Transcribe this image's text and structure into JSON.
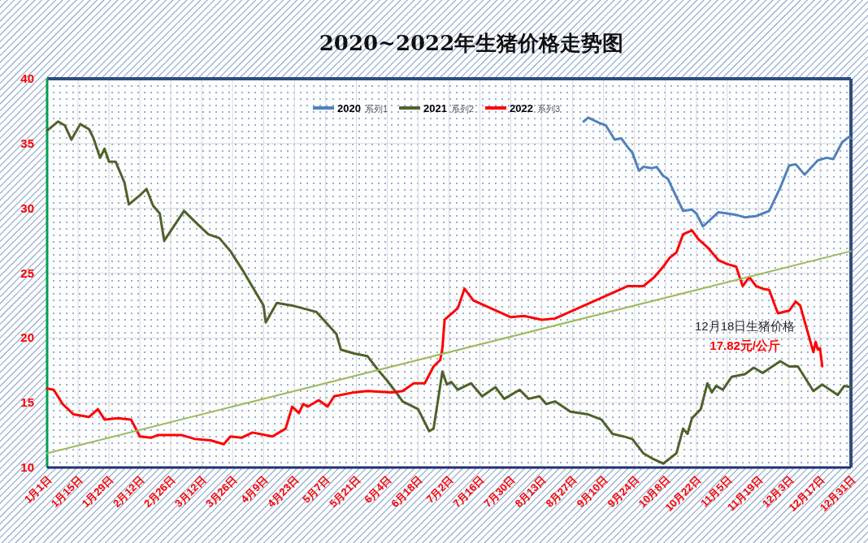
{
  "chart_data": {
    "type": "line",
    "title": "2020~2022年生猪价格走势图",
    "xlim": [
      "--01-01",
      "--12-31"
    ],
    "xticks": [
      {
        "value": "--01-01",
        "label": "1月1日"
      },
      {
        "value": "--01-15",
        "label": "1月15日"
      },
      {
        "value": "--01-29",
        "label": "1月29日"
      },
      {
        "value": "--02-12",
        "label": "2月12日"
      },
      {
        "value": "--02-26",
        "label": "2月26日"
      },
      {
        "value": "--03-12",
        "label": "3月12日"
      },
      {
        "value": "--03-26",
        "label": "3月26日"
      },
      {
        "value": "--04-09",
        "label": "4月9日"
      },
      {
        "value": "--04-23",
        "label": "4月23日"
      },
      {
        "value": "--05-07",
        "label": "5月7日"
      },
      {
        "value": "--05-21",
        "label": "5月21日"
      },
      {
        "value": "--06-04",
        "label": "6月4日"
      },
      {
        "value": "--06-18",
        "label": "6月18日"
      },
      {
        "value": "--07-02",
        "label": "7月2日"
      },
      {
        "value": "--07-16",
        "label": "7月16日"
      },
      {
        "value": "--07-30",
        "label": "7月30日"
      },
      {
        "value": "--08-13",
        "label": "8月13日"
      },
      {
        "value": "--08-27",
        "label": "8月27日"
      },
      {
        "value": "--09-10",
        "label": "9月10日"
      },
      {
        "value": "--09-24",
        "label": "9月24日"
      },
      {
        "value": "--10-08",
        "label": "10月8日"
      },
      {
        "value": "--10-22",
        "label": "10月22日"
      },
      {
        "value": "--11-05",
        "label": "11月5日"
      },
      {
        "value": "--11-19",
        "label": "11月19日"
      },
      {
        "value": "--12-03",
        "label": "12月3日"
      },
      {
        "value": "--12-17",
        "label": "12月17日"
      },
      {
        "value": "--12-31",
        "label": "12月31日"
      }
    ],
    "ylim": [
      10,
      40
    ],
    "yticks": [
      10,
      15,
      20,
      25,
      30,
      35,
      40
    ],
    "grid": true,
    "legend": "top",
    "series": [
      {
        "name": "2020",
        "color": "#4f81bd",
        "x": [
          "--09-01",
          "--09-03",
          "--09-08",
          "--09-11",
          "--09-15",
          "--09-18",
          "--09-21",
          "--09-23",
          "--09-26",
          "--09-28",
          "--10-02",
          "--10-04",
          "--10-07",
          "--10-09",
          "--10-16",
          "--10-20",
          "--10-22",
          "--10-25",
          "--11-01",
          "--11-05",
          "--11-09",
          "--11-13",
          "--11-18",
          "--11-24",
          "--11-29",
          "--12-03",
          "--12-06",
          "--12-10",
          "--12-16",
          "--12-20",
          "--12-23",
          "--12-27",
          "--12-30",
          "--12-31"
        ],
        "values": [
          36.7,
          37.0,
          36.6,
          36.4,
          35.3,
          35.4,
          34.7,
          34.3,
          32.9,
          33.2,
          33.1,
          33.2,
          32.5,
          32.3,
          29.8,
          29.9,
          29.6,
          28.6,
          29.7,
          29.6,
          29.5,
          29.3,
          29.4,
          29.8,
          31.6,
          33.3,
          33.4,
          32.6,
          33.7,
          33.9,
          33.8,
          35.1,
          35.5,
          35.4
        ]
      },
      {
        "name": "2021",
        "color": "#4f6228",
        "x": [
          "--01-01",
          "--01-06",
          "--01-09",
          "--01-12",
          "--01-16",
          "--01-20",
          "--01-22",
          "--01-25",
          "--01-27",
          "--01-29",
          "--02-01",
          "--02-05",
          "--02-07",
          "--02-12",
          "--02-15",
          "--02-18",
          "--02-21",
          "--02-23",
          "--03-04",
          "--03-10",
          "--03-15",
          "--03-20",
          "--03-25",
          "--03-31",
          "--04-09",
          "--04-10",
          "--04-15",
          "--04-22",
          "--05-03",
          "--05-12",
          "--05-14",
          "--05-20",
          "--05-26",
          "--05-31",
          "--06-04",
          "--06-08",
          "--06-11",
          "--06-18",
          "--06-23",
          "--06-25",
          "--06-29",
          "--07-01",
          "--07-03",
          "--07-06",
          "--07-12",
          "--07-17",
          "--07-23",
          "--07-27",
          "--08-03",
          "--08-07",
          "--08-12",
          "--08-15",
          "--08-19",
          "--08-26",
          "--09-03",
          "--09-09",
          "--09-14",
          "--09-19",
          "--09-23",
          "--09-28",
          "--10-02",
          "--10-07",
          "--10-13",
          "--10-16",
          "--10-18",
          "--10-20",
          "--10-24",
          "--10-27",
          "--10-29",
          "--10-31",
          "--11-03",
          "--11-07",
          "--11-13",
          "--11-17",
          "--11-21",
          "--11-29",
          "--12-03",
          "--12-07",
          "--12-14",
          "--12-18",
          "--12-25",
          "--12-28",
          "--12-31"
        ],
        "values": [
          36.0,
          36.7,
          36.4,
          35.3,
          36.5,
          36.1,
          35.4,
          33.9,
          34.6,
          33.6,
          33.6,
          32.0,
          30.3,
          31.0,
          31.5,
          30.2,
          29.6,
          27.5,
          29.8,
          28.8,
          28.0,
          27.7,
          26.7,
          25.1,
          22.5,
          21.2,
          22.7,
          22.5,
          22.0,
          20.3,
          19.1,
          18.8,
          18.6,
          17.5,
          16.7,
          15.8,
          15.1,
          14.5,
          12.8,
          13.0,
          17.4,
          16.4,
          16.6,
          16.0,
          16.5,
          15.5,
          16.2,
          15.3,
          16.0,
          15.3,
          15.5,
          14.9,
          15.1,
          14.3,
          14.1,
          13.7,
          12.6,
          12.4,
          12.2,
          11.1,
          10.7,
          10.3,
          11.1,
          13.0,
          12.6,
          13.8,
          14.5,
          16.5,
          15.8,
          16.3,
          16.0,
          17.0,
          17.2,
          17.7,
          17.3,
          18.2,
          17.8,
          17.8,
          15.9,
          16.4,
          15.6,
          16.3,
          16.2
        ]
      },
      {
        "name": "2022",
        "color": "#ff0000",
        "x": [
          "--01-01",
          "--01-04",
          "--01-08",
          "--01-13",
          "--01-20",
          "--01-24",
          "--01-27",
          "--02-02",
          "--02-08",
          "--02-12",
          "--02-17",
          "--02-20",
          "--03-03",
          "--03-09",
          "--03-16",
          "--03-22",
          "--03-25",
          "--03-30",
          "--04-04",
          "--04-13",
          "--04-19",
          "--04-22",
          "--04-25",
          "--04-27",
          "--04-29",
          "--05-04",
          "--05-08",
          "--05-11",
          "--05-20",
          "--05-26",
          "--06-06",
          "--06-11",
          "--06-16",
          "--06-21",
          "--06-25",
          "--06-28",
          "--06-29",
          "--06-30",
          "--07-06",
          "--07-09",
          "--07-13",
          "--07-30",
          "--08-05",
          "--08-13",
          "--08-19",
          "--09-13",
          "--09-21",
          "--09-28",
          "--10-03",
          "--10-07",
          "--10-10",
          "--10-13",
          "--10-16",
          "--10-20",
          "--10-23",
          "--10-27",
          "--11-01",
          "--11-05",
          "--11-09",
          "--11-12",
          "--11-15",
          "--11-18",
          "--11-21",
          "--11-24",
          "--11-27",
          "--11-28",
          "--12-03",
          "--12-06",
          "--12-08",
          "--12-11",
          "--12-14",
          "--12-15",
          "--12-16",
          "--12-17",
          "--12-18"
        ],
        "values": [
          16.1,
          16.0,
          14.9,
          14.1,
          13.9,
          14.5,
          13.7,
          13.8,
          13.7,
          12.4,
          12.3,
          12.5,
          12.5,
          12.2,
          12.1,
          11.8,
          12.4,
          12.3,
          12.7,
          12.4,
          13.0,
          14.7,
          14.2,
          14.9,
          14.7,
          15.2,
          14.7,
          15.5,
          15.8,
          15.9,
          15.8,
          15.9,
          16.5,
          16.5,
          17.8,
          18.3,
          19.2,
          21.4,
          22.3,
          23.8,
          22.9,
          21.6,
          21.7,
          21.4,
          21.5,
          23.4,
          24.0,
          24.0,
          24.7,
          25.5,
          26.2,
          26.6,
          28.0,
          28.3,
          27.6,
          27.0,
          26.0,
          25.7,
          25.5,
          24.0,
          24.7,
          24.0,
          23.8,
          23.7,
          22.3,
          21.9,
          22.1,
          22.8,
          22.5,
          20.7,
          18.9,
          19.7,
          19.1,
          19.2,
          17.82
        ]
      },
      {
        "type": "line",
        "color": "#9bbb59",
        "x": [
          "--01-01",
          "--12-31"
        ],
        "values": [
          11.1,
          26.7
        ]
      }
    ],
    "annotations": [
      "系列1",
      "系列2",
      "系列3",
      "12月18日生猪价格",
      "17.82元/公斤"
    ]
  }
}
